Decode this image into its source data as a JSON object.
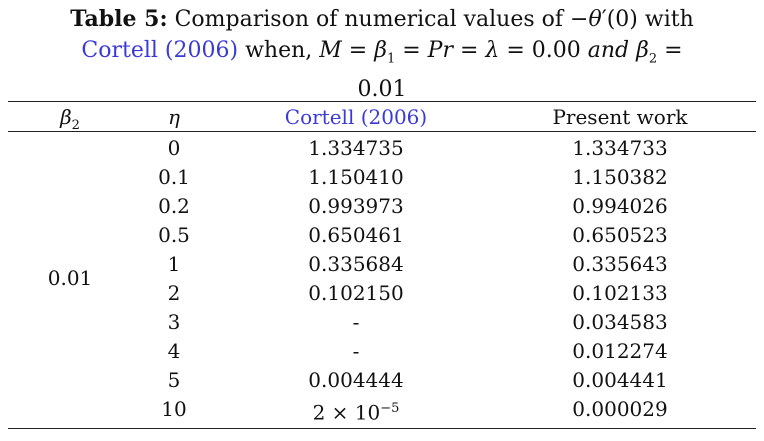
{
  "caption": {
    "label": "Table 5:",
    "text_before": "Comparison of numerical values of −θ′(0) with",
    "ref": "Cortell (2006)",
    "when": "when,",
    "cond": "M = β1 = Pr = λ = 0.00 and β2 =",
    "cond_tail": "0.01"
  },
  "header": {
    "col1": "β2",
    "col2": "η",
    "col3": "Cortell (2006)",
    "col4": "Present work"
  },
  "group_label": "0.01",
  "rows": [
    {
      "eta": "0",
      "cortell": "1.334735",
      "present": "1.334733"
    },
    {
      "eta": "0.1",
      "cortell": "1.150410",
      "present": "1.150382"
    },
    {
      "eta": "0.2",
      "cortell": "0.993973",
      "present": "0.994026"
    },
    {
      "eta": "0.5",
      "cortell": "0.650461",
      "present": "0.650523"
    },
    {
      "eta": "1",
      "cortell": "0.335684",
      "present": "0.335643"
    },
    {
      "eta": "2",
      "cortell": "0.102150",
      "present": "0.102133"
    },
    {
      "eta": "3",
      "cortell": "-",
      "present": "0.034583"
    },
    {
      "eta": "4",
      "cortell": "-",
      "present": "0.012274"
    },
    {
      "eta": "5",
      "cortell": "0.004444",
      "present": "0.004441"
    },
    {
      "eta": "10",
      "cortell": "2 × 10−5",
      "present": "0.000029"
    }
  ],
  "colors": {
    "link": "#3a3ad6",
    "text": "#111111",
    "rule": "#222222"
  }
}
